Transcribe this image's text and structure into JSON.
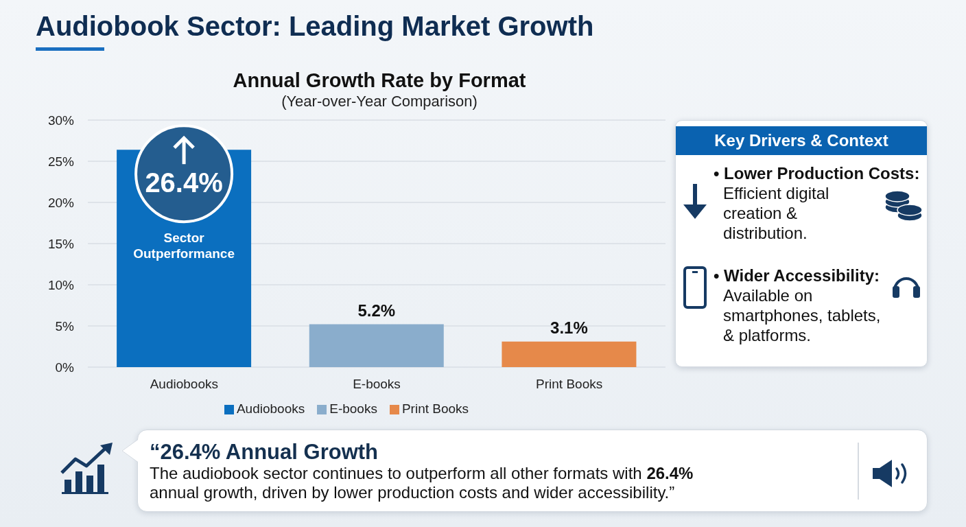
{
  "chart_data": [
    {
      "type": "bar",
      "title": "Annual Growth Rate by Format",
      "subtitle": "(Year-over-Year Comparison)",
      "annotations": [
        "Audiobook Sector: Leading Market Growth",
        "Sector Outperformance"
      ],
      "categories": [
        "Audiobooks",
        "E-books",
        "Print Books"
      ],
      "series": [
        {
          "name": "Audiobooks",
          "color": "#0b6fbf",
          "values": [
            26.4,
            null,
            null
          ],
          "value_labels": [
            "26.4%",
            null,
            null
          ]
        },
        {
          "name": "E-books",
          "color": "#8aadcc",
          "values": [
            null,
            5.2,
            null
          ],
          "value_labels": [
            null,
            "5.2%",
            null
          ]
        },
        {
          "name": "Print Books",
          "color": "#e6894a",
          "values": [
            null,
            null,
            3.1
          ],
          "value_labels": [
            null,
            null,
            "3.1%"
          ]
        }
      ],
      "ylim": [
        0,
        30
      ],
      "yticks": [
        {
          "value": 0,
          "label": "0%"
        },
        {
          "value": 5,
          "label": "5%"
        },
        {
          "value": 10,
          "label": "10%"
        },
        {
          "value": 15,
          "label": "15%"
        },
        {
          "value": 20,
          "label": "20%"
        },
        {
          "value": 25,
          "label": "25%"
        },
        {
          "value": 30,
          "label": "30%"
        }
      ],
      "grid": "y",
      "legend": "bottom"
    },
    {
      "type": "other",
      "title": "Key Drivers & Context",
      "annotations": [
        "• Lower Production Costs:",
        "Efficient digital creation & distribution.",
        "• Wider Accessibility:",
        "Available on smartphones, tablets, & platforms."
      ]
    },
    {
      "type": "other",
      "title": "“26.4% Annual Growth",
      "annotations": [
        "The audiobook sector continues to outperform all other formats with",
        "26.4%",
        "annual growth, driven by lower production costs and wider accessibility.”"
      ]
    }
  ]
}
